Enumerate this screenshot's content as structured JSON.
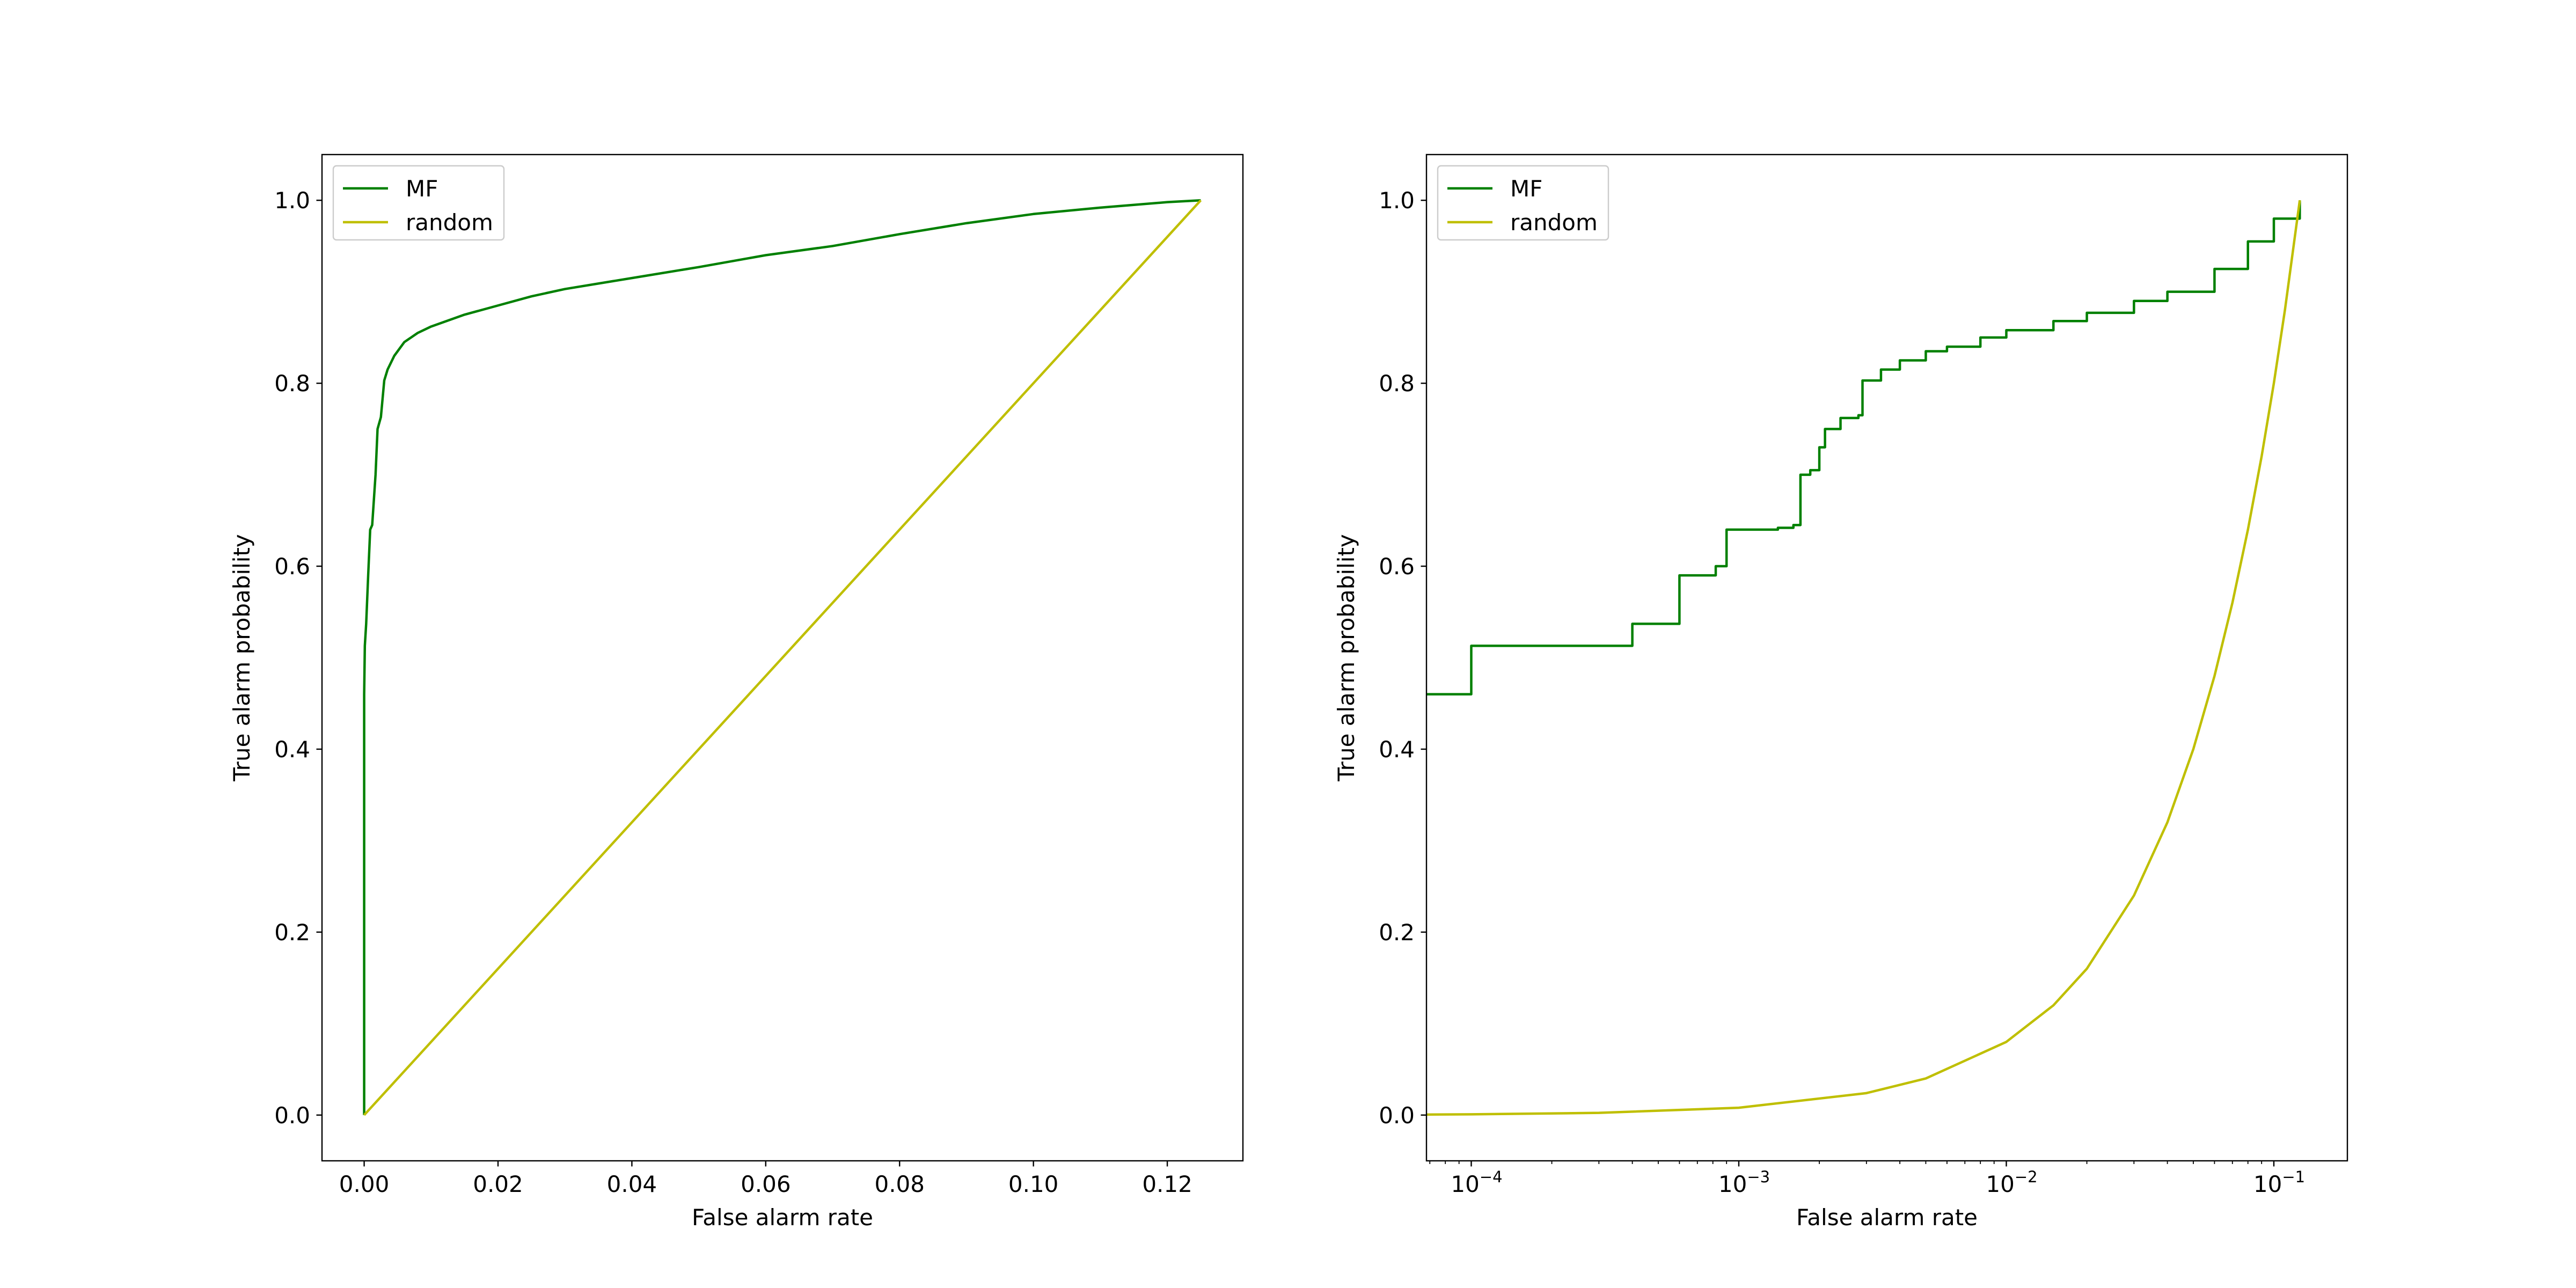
{
  "colors": {
    "MF": "#008000",
    "random": "#bfbf00",
    "frame": "#000000",
    "legend_border": "#cccccc"
  },
  "chart_data": [
    {
      "type": "line",
      "xscale": "linear",
      "xlabel": "False alarm rate",
      "ylabel": "True alarm probability",
      "xlim": [
        -0.0063,
        0.1313
      ],
      "ylim": [
        -0.05,
        1.05
      ],
      "xticks": [
        0.0,
        0.02,
        0.04,
        0.06,
        0.08,
        0.1,
        0.12
      ],
      "xtick_labels": [
        "0.00",
        "0.02",
        "0.04",
        "0.06",
        "0.08",
        "0.10",
        "0.12"
      ],
      "yticks": [
        0.0,
        0.2,
        0.4,
        0.6,
        0.8,
        1.0
      ],
      "ytick_labels": [
        "0.0",
        "0.2",
        "0.4",
        "0.6",
        "0.8",
        "1.0"
      ],
      "grid": false,
      "legend_placement": "upper left",
      "series": [
        {
          "name": "MF",
          "color_key": "MF",
          "x": [
            0.0,
            0.0,
            0.0001,
            0.0003,
            0.0006,
            0.0009,
            0.0012,
            0.0017,
            0.002,
            0.0025,
            0.003,
            0.0035,
            0.0045,
            0.006,
            0.008,
            0.01,
            0.015,
            0.02,
            0.025,
            0.03,
            0.04,
            0.05,
            0.06,
            0.07,
            0.08,
            0.09,
            0.1,
            0.11,
            0.12,
            0.125
          ],
          "y": [
            0.0,
            0.46,
            0.513,
            0.537,
            0.59,
            0.64,
            0.645,
            0.7,
            0.75,
            0.763,
            0.803,
            0.815,
            0.83,
            0.845,
            0.855,
            0.862,
            0.875,
            0.885,
            0.895,
            0.903,
            0.915,
            0.927,
            0.94,
            0.95,
            0.963,
            0.975,
            0.985,
            0.992,
            0.998,
            1.0
          ]
        },
        {
          "name": "random",
          "color_key": "random",
          "x": [
            0.0,
            0.125
          ],
          "y": [
            0.0,
            1.0
          ]
        }
      ]
    },
    {
      "type": "line",
      "xscale": "log",
      "xlabel": "False alarm rate",
      "ylabel": "True alarm probability",
      "xlim": [
        6.8e-05,
        0.1883
      ],
      "ylim": [
        -0.05,
        1.05
      ],
      "xticks": [
        0.0001,
        0.001,
        0.01,
        0.1
      ],
      "xtick_labels": [
        "10",
        "10",
        "10",
        "10"
      ],
      "xtick_exponents": [
        "−4",
        "−3",
        "−2",
        "−1"
      ],
      "yticks": [
        0.0,
        0.2,
        0.4,
        0.6,
        0.8,
        1.0
      ],
      "ytick_labels": [
        "0.0",
        "0.2",
        "0.4",
        "0.6",
        "0.8",
        "1.0"
      ],
      "grid": false,
      "legend_placement": "upper left",
      "series": [
        {
          "name": "MF",
          "color_key": "MF",
          "step": true,
          "x": [
            6.8e-05,
            0.0001,
            0.0004,
            0.0006,
            0.00082,
            0.0009,
            0.0014,
            0.0016,
            0.0017,
            0.00185,
            0.002,
            0.0021,
            0.0024,
            0.0028,
            0.0029,
            0.0034,
            0.004,
            0.005,
            0.006,
            0.008,
            0.01,
            0.015,
            0.02,
            0.03,
            0.04,
            0.06,
            0.08,
            0.1,
            0.125
          ],
          "y": [
            0.46,
            0.513,
            0.537,
            0.59,
            0.6,
            0.64,
            0.642,
            0.645,
            0.7,
            0.705,
            0.73,
            0.75,
            0.762,
            0.765,
            0.803,
            0.815,
            0.825,
            0.835,
            0.84,
            0.85,
            0.858,
            0.868,
            0.877,
            0.89,
            0.9,
            0.925,
            0.955,
            0.98,
            1.0
          ]
        },
        {
          "name": "random",
          "color_key": "random",
          "x": [
            6.8e-05,
            0.0001,
            0.0003,
            0.001,
            0.003,
            0.005,
            0.01,
            0.015,
            0.02,
            0.03,
            0.04,
            0.05,
            0.06,
            0.07,
            0.08,
            0.09,
            0.1,
            0.11,
            0.125
          ],
          "y": [
            0.00054,
            0.0008,
            0.0024,
            0.008,
            0.024,
            0.04,
            0.08,
            0.12,
            0.16,
            0.24,
            0.32,
            0.4,
            0.48,
            0.56,
            0.64,
            0.72,
            0.8,
            0.88,
            1.0
          ]
        }
      ]
    }
  ]
}
